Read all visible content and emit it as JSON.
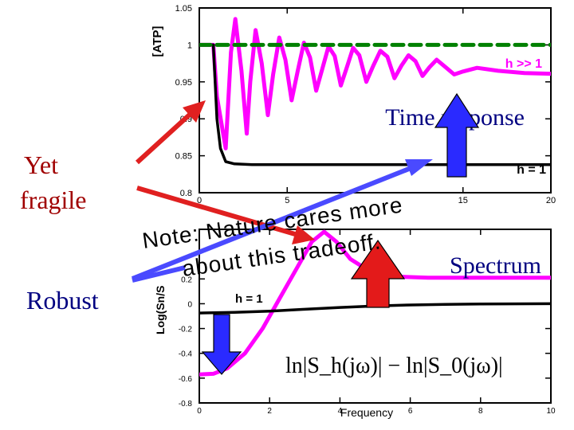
{
  "side_labels": {
    "yet": "Yet",
    "fragile": "fragile",
    "robust": "Robust"
  },
  "colors": {
    "magenta": "#ff00ff",
    "black": "#000000",
    "green": "#008000",
    "red": "#e02020",
    "blue": "#3a3aff",
    "dark_red": "#a00000",
    "dark_blue": "#000080"
  },
  "note": {
    "line1": "Note: Nature cares more",
    "line2": "about this tradeoff."
  },
  "chart_data": [
    {
      "type": "line",
      "title": "Time response",
      "ylabel": "[ATP]",
      "xlabel": "",
      "xlim": [
        0,
        20
      ],
      "ylim": [
        0.8,
        1.05
      ],
      "x_ticks": [
        "0",
        "5",
        "15",
        "20"
      ],
      "y_ticks": [
        "0.8",
        "0.85",
        "0.9",
        "0.95",
        "1",
        "1.05"
      ],
      "series": [
        {
          "name": "h >> 1",
          "color": "#ff00ff",
          "points": [
            [
              0.0,
              1.0
            ],
            [
              0.8,
              1.0
            ],
            [
              1.0,
              0.93
            ],
            [
              1.5,
              0.86
            ],
            [
              1.8,
              0.99
            ],
            [
              2.05,
              1.035
            ],
            [
              2.4,
              0.965
            ],
            [
              2.7,
              0.88
            ],
            [
              2.9,
              0.95
            ],
            [
              3.2,
              1.02
            ],
            [
              3.55,
              0.975
            ],
            [
              3.9,
              0.905
            ],
            [
              4.2,
              0.96
            ],
            [
              4.55,
              1.01
            ],
            [
              4.9,
              0.98
            ],
            [
              5.25,
              0.925
            ],
            [
              5.6,
              0.965
            ],
            [
              5.95,
              1.003
            ],
            [
              6.3,
              0.983
            ],
            [
              6.65,
              0.938
            ],
            [
              7.0,
              0.968
            ],
            [
              7.35,
              0.998
            ],
            [
              7.7,
              0.985
            ],
            [
              8.05,
              0.945
            ],
            [
              8.4,
              0.97
            ],
            [
              8.75,
              0.996
            ],
            [
              9.1,
              0.986
            ],
            [
              9.5,
              0.95
            ],
            [
              9.9,
              0.972
            ],
            [
              10.3,
              0.992
            ],
            [
              10.7,
              0.984
            ],
            [
              11.1,
              0.955
            ],
            [
              11.5,
              0.972
            ],
            [
              11.9,
              0.986
            ],
            [
              12.3,
              0.978
            ],
            [
              12.7,
              0.958
            ],
            [
              13.1,
              0.97
            ],
            [
              13.5,
              0.98
            ],
            [
              14.0,
              0.97
            ],
            [
              14.5,
              0.96
            ],
            [
              15.0,
              0.964
            ],
            [
              15.8,
              0.969
            ],
            [
              17.0,
              0.965
            ],
            [
              18.5,
              0.962
            ],
            [
              20.0,
              0.961
            ]
          ]
        },
        {
          "name": "h = 1",
          "color": "#000000",
          "points": [
            [
              0.0,
              1.0
            ],
            [
              0.8,
              1.0
            ],
            [
              1.0,
              0.9
            ],
            [
              1.2,
              0.86
            ],
            [
              1.5,
              0.842
            ],
            [
              2.0,
              0.839
            ],
            [
              3.0,
              0.838
            ],
            [
              6.0,
              0.838
            ],
            [
              10.0,
              0.838
            ],
            [
              15.0,
              0.838
            ],
            [
              20.0,
              0.838
            ]
          ]
        },
        {
          "name": "",
          "color": "#008000",
          "dashed": true,
          "points": [
            [
              0.0,
              1.0
            ],
            [
              20.0,
              1.0
            ]
          ]
        }
      ],
      "annotations": [
        "h >> 1",
        "h = 1"
      ]
    },
    {
      "type": "line",
      "title": "Spectrum",
      "xlabel": "Frequency",
      "ylabel": "Log(Sn/S",
      "xlim": [
        0,
        10
      ],
      "ylim": [
        -0.8,
        0.6
      ],
      "x_ticks": [
        "0",
        "2",
        "4",
        "6",
        "8",
        "10"
      ],
      "y_ticks": [
        "-0.8",
        "-0.6",
        "-0.4",
        "-0.2",
        "0",
        "0.2"
      ],
      "formula": "ln|S_h(jω)| − ln|S_0(jω)|",
      "series": [
        {
          "name": "h >> 1",
          "color": "#ff00ff",
          "points": [
            [
              0.0,
              -0.57
            ],
            [
              0.4,
              -0.565
            ],
            [
              0.8,
              -0.52
            ],
            [
              1.3,
              -0.4
            ],
            [
              1.8,
              -0.2
            ],
            [
              2.3,
              0.05
            ],
            [
              2.8,
              0.3
            ],
            [
              3.2,
              0.5
            ],
            [
              3.55,
              0.58
            ],
            [
              3.9,
              0.5
            ],
            [
              4.3,
              0.36
            ],
            [
              4.8,
              0.27
            ],
            [
              5.5,
              0.22
            ],
            [
              6.5,
              0.21
            ],
            [
              7.5,
              0.21
            ],
            [
              8.5,
              0.21
            ],
            [
              10.0,
              0.21
            ]
          ]
        },
        {
          "name": "h = 1",
          "color": "#000000",
          "points": [
            [
              0.0,
              -0.075
            ],
            [
              1.0,
              -0.07
            ],
            [
              2.0,
              -0.06
            ],
            [
              3.0,
              -0.045
            ],
            [
              4.0,
              -0.03
            ],
            [
              5.0,
              -0.018
            ],
            [
              6.0,
              -0.01
            ],
            [
              7.0,
              -0.005
            ],
            [
              8.0,
              -0.002
            ],
            [
              10.0,
              0.0
            ]
          ]
        }
      ],
      "annotations": [
        "h = 1"
      ]
    }
  ]
}
